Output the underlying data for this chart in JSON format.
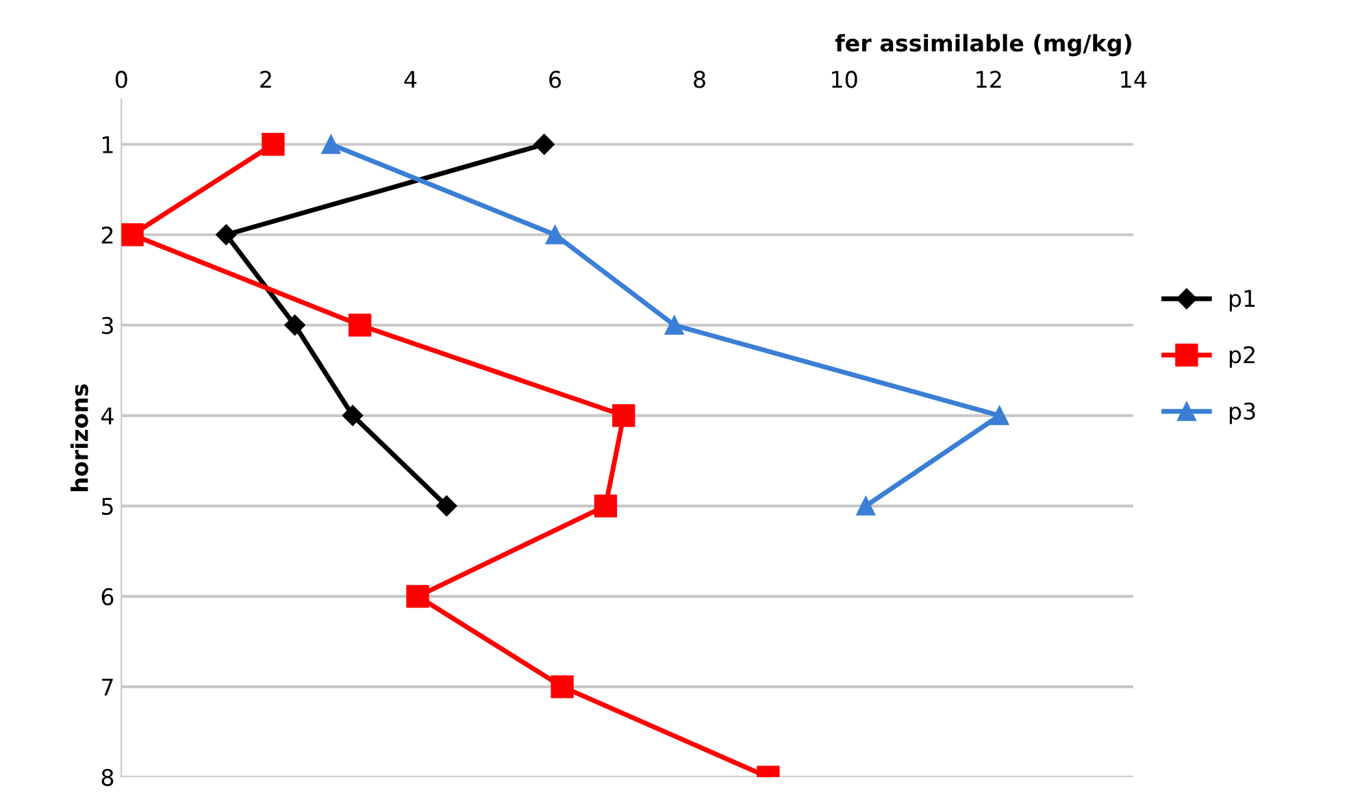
{
  "chart_data": {
    "type": "line",
    "orientation": "horizontal",
    "xlabel": "fer assimilable (mg/kg)",
    "ylabel": "horizons",
    "categories": [
      "1",
      "2",
      "3",
      "4",
      "5",
      "6",
      "7",
      "8"
    ],
    "xlim": [
      0,
      14
    ],
    "xticks": [
      0,
      2,
      4,
      6,
      8,
      10,
      12,
      14
    ],
    "grid": "y",
    "legend": "right",
    "line_style": "solid",
    "series": [
      {
        "name": "p1",
        "color": "#000000",
        "marker": "diamond",
        "values": [
          5.85,
          1.45,
          2.4,
          3.2,
          4.5,
          null,
          null,
          null
        ]
      },
      {
        "name": "p2",
        "color": "#ff0000",
        "marker": "square",
        "values": [
          2.1,
          0.15,
          3.3,
          6.95,
          6.7,
          4.1,
          6.1,
          8.95
        ]
      },
      {
        "name": "p3",
        "color": "#3a7fd5",
        "marker": "triangle",
        "values": [
          2.9,
          6.0,
          7.65,
          12.15,
          10.3,
          null,
          null,
          null
        ]
      }
    ]
  }
}
